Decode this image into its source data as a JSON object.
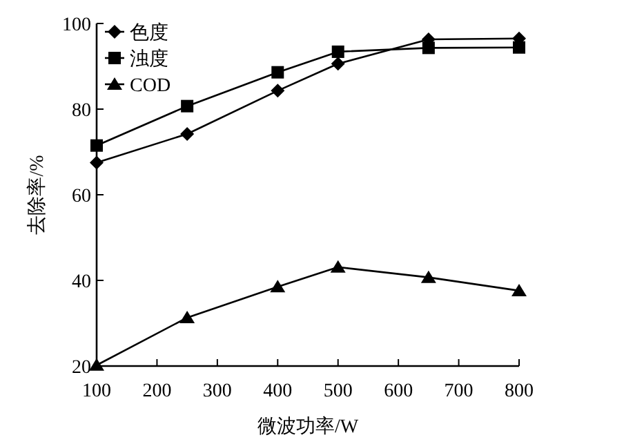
{
  "chart_data": {
    "type": "line",
    "xlabel": "微波功率/W",
    "ylabel": "去除率/%",
    "x": [
      100,
      250,
      400,
      500,
      650,
      800
    ],
    "series": [
      {
        "name": "色度",
        "color": "#000000",
        "marker": "diamond",
        "values": [
          67.5,
          74.2,
          84.3,
          90.6,
          96.3,
          96.5
        ]
      },
      {
        "name": "浊度",
        "color": "#000000",
        "marker": "square",
        "values": [
          71.5,
          80.7,
          88.6,
          93.4,
          94.3,
          94.4
        ]
      },
      {
        "name": "COD",
        "color": "#000000",
        "marker": "triangle",
        "values": [
          20.2,
          31.3,
          38.5,
          43.1,
          40.7,
          37.6
        ]
      }
    ],
    "xlim": [
      100,
      800
    ],
    "ylim": [
      20,
      100
    ],
    "xticks": [
      100,
      200,
      300,
      400,
      500,
      600,
      700,
      800
    ],
    "yticks": [
      20,
      40,
      60,
      80,
      100
    ],
    "legend": "top left",
    "grid": false,
    "line_style": "solid"
  }
}
